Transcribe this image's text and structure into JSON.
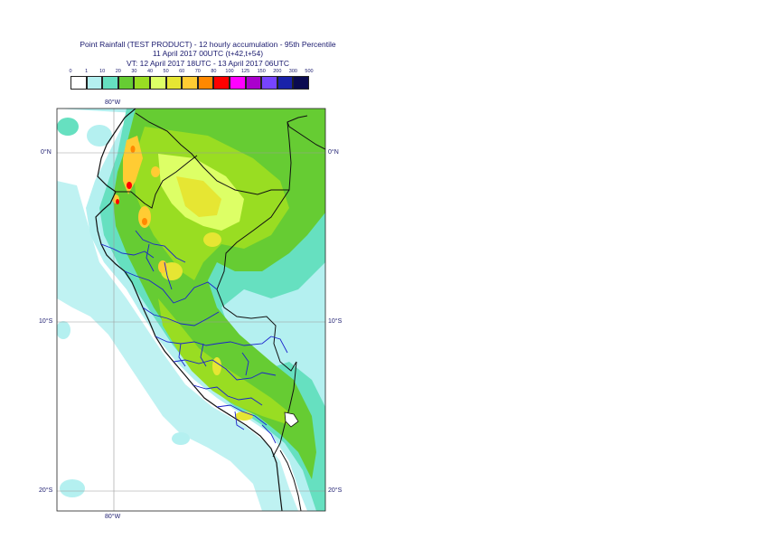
{
  "title": {
    "line1": "Point Rainfall (TEST PRODUCT) - 12 hourly accumulation - 95th Percentile",
    "line2": "11 April 2017 00UTC (t+42,t+54)",
    "line3": "VT: 12 April 2017 18UTC - 13 April 2017 06UTC"
  },
  "legend": {
    "thresholds": [
      "0",
      "1",
      "10",
      "20",
      "30",
      "40",
      "50",
      "60",
      "70",
      "80",
      "100",
      "125",
      "150",
      "200",
      "300",
      "500"
    ],
    "colors": [
      "#ffffff",
      "#b4f0f0",
      "#66e0c0",
      "#66cc33",
      "#99dd22",
      "#ddff66",
      "#e6e633",
      "#ffcc33",
      "#ff8800",
      "#ff0000",
      "#ff00ff",
      "#aa00cc",
      "#7744ff",
      "#1a22aa",
      "#0a0a50"
    ]
  },
  "axes": {
    "lon_top": "80°W",
    "lon_bottom": "80°W",
    "lat_0_left": "0°N",
    "lat_0_right": "0°N",
    "lat_10_left": "10°S",
    "lat_10_right": "10°S",
    "lat_20_left": "20°S",
    "lat_20_right": "20°S"
  }
}
